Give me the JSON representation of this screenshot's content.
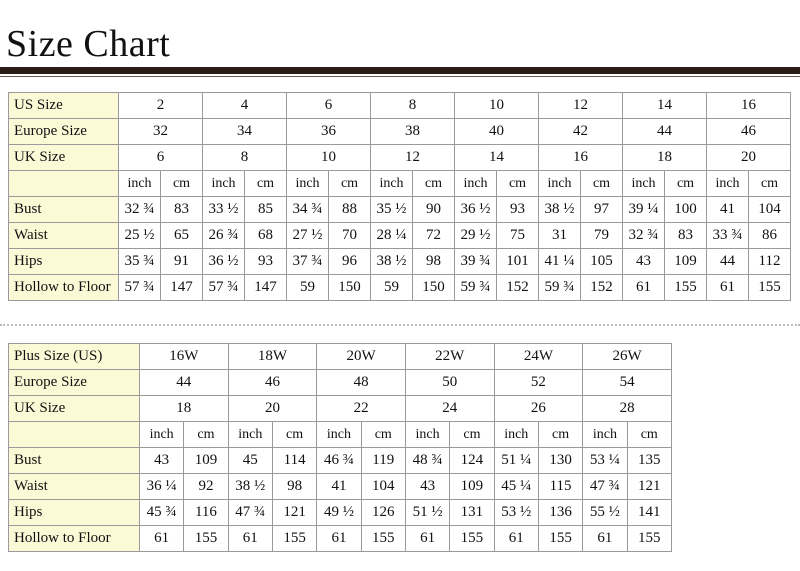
{
  "header": {
    "title": "Size Chart"
  },
  "tables": [
    {
      "size_rows": [
        {
          "label": "US Size",
          "values": [
            "2",
            "4",
            "6",
            "8",
            "10",
            "12",
            "14",
            "16"
          ]
        },
        {
          "label": "Europe Size",
          "values": [
            "32",
            "34",
            "36",
            "38",
            "40",
            "42",
            "44",
            "46"
          ]
        },
        {
          "label": "UK Size",
          "values": [
            "6",
            "8",
            "10",
            "12",
            "14",
            "16",
            "18",
            "20"
          ]
        }
      ],
      "units": [
        "inch",
        "cm",
        "inch",
        "cm",
        "inch",
        "cm",
        "inch",
        "cm",
        "inch",
        "cm",
        "inch",
        "cm",
        "inch",
        "cm",
        "inch",
        "cm"
      ],
      "measure_rows": [
        {
          "label": "Bust",
          "values": [
            "32 ¾",
            "83",
            "33 ½",
            "85",
            "34 ¾",
            "88",
            "35 ½",
            "90",
            "36 ½",
            "93",
            "38 ½",
            "97",
            "39 ¼",
            "100",
            "41",
            "104"
          ]
        },
        {
          "label": "Waist",
          "values": [
            "25 ½",
            "65",
            "26 ¾",
            "68",
            "27 ½",
            "70",
            "28 ¼",
            "72",
            "29 ½",
            "75",
            "31",
            "79",
            "32 ¾",
            "83",
            "33 ¾",
            "86"
          ]
        },
        {
          "label": "Hips",
          "values": [
            "35 ¾",
            "91",
            "36 ½",
            "93",
            "37 ¾",
            "96",
            "38 ½",
            "98",
            "39 ¾",
            "101",
            "41 ¼",
            "105",
            "43",
            "109",
            "44",
            "112"
          ]
        },
        {
          "label": "Hollow to Floor",
          "values": [
            "57 ¾",
            "147",
            "57 ¾",
            "147",
            "59",
            "150",
            "59",
            "150",
            "59 ¾",
            "152",
            "59 ¾",
            "152",
            "61",
            "155",
            "61",
            "155"
          ]
        }
      ]
    },
    {
      "size_rows": [
        {
          "label": "Plus Size (US)",
          "values": [
            "16W",
            "18W",
            "20W",
            "22W",
            "24W",
            "26W"
          ]
        },
        {
          "label": "Europe Size",
          "values": [
            "44",
            "46",
            "48",
            "50",
            "52",
            "54"
          ]
        },
        {
          "label": "UK Size",
          "values": [
            "18",
            "20",
            "22",
            "24",
            "26",
            "28"
          ]
        }
      ],
      "units": [
        "inch",
        "cm",
        "inch",
        "cm",
        "inch",
        "cm",
        "inch",
        "cm",
        "inch",
        "cm",
        "inch",
        "cm"
      ],
      "measure_rows": [
        {
          "label": "Bust",
          "values": [
            "43",
            "109",
            "45",
            "114",
            "46 ¾",
            "119",
            "48 ¾",
            "124",
            "51 ¼",
            "130",
            "53 ¼",
            "135"
          ]
        },
        {
          "label": "Waist",
          "values": [
            "36 ¼",
            "92",
            "38 ½",
            "98",
            "41",
            "104",
            "43",
            "109",
            "45 ¼",
            "115",
            "47 ¾",
            "121"
          ]
        },
        {
          "label": "Hips",
          "values": [
            "45 ¾",
            "116",
            "47 ¾",
            "121",
            "49 ½",
            "126",
            "51 ½",
            "131",
            "53 ½",
            "136",
            "55 ½",
            "141"
          ]
        },
        {
          "label": "Hollow to Floor",
          "values": [
            "61",
            "155",
            "61",
            "155",
            "61",
            "155",
            "61",
            "155",
            "61",
            "155",
            "61",
            "155"
          ]
        }
      ]
    }
  ]
}
